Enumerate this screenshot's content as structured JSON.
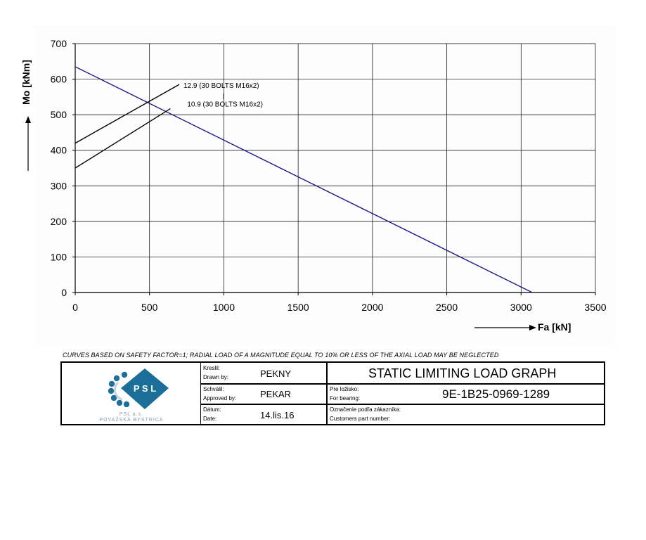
{
  "chart_data": {
    "type": "line",
    "xlabel": "Fa [kN]",
    "ylabel": "Mo [kNm]",
    "xlim": [
      0,
      3500
    ],
    "ylim": [
      0,
      700
    ],
    "x_ticks": [
      "0",
      "500",
      "1000",
      "1500",
      "2000",
      "2500",
      "3000",
      "3500"
    ],
    "y_ticks": [
      "0",
      "100",
      "200",
      "300",
      "400",
      "500",
      "600",
      "700"
    ],
    "grid": true,
    "series": [
      {
        "name": "",
        "color": "#1c1c8c",
        "x": [
          0,
          3075
        ],
        "y": [
          635,
          0
        ]
      },
      {
        "name": "12.9 (30 BOLTS M16x2)",
        "color": "#000000",
        "x": [
          0,
          700
        ],
        "y": [
          420,
          585
        ]
      },
      {
        "name": "10.9 (30 BOLTS M16x2)",
        "color": "#000000",
        "x": [
          0,
          640
        ],
        "y": [
          350,
          517
        ]
      }
    ]
  },
  "note": "CURVES BASED ON SAFETY FACTOR=1; RADIAL LOAD OF A MAGNITUDE EQUAL TO 10% OR LESS OF THE AXIAL LOAD MAY BE NEGLECTED",
  "title_block": {
    "logo_text": "P S L",
    "logo_caption_1": "PSL a.s.",
    "logo_caption_2": "POVAŽSKÁ BYSTRICA",
    "drawn_label_sk": "Kreslil:",
    "drawn_label_en": "Drawn by:",
    "drawn_value": "PEKNY",
    "approved_label_sk": "Schválil:",
    "approved_label_en": "Approved by:",
    "approved_value": "PEKAR",
    "date_label_sk": "Dátum:",
    "date_label_en": "Date:",
    "date_value": "14.lis.16",
    "title": "STATIC LIMITING LOAD GRAPH",
    "bearing_label_sk": "Pre ložisko:",
    "bearing_label_en": "For bearing:",
    "bearing_value": "9E-1B25-0969-1289",
    "customer_label_sk": "Označenie podľa zákazníka:",
    "customer_label_en": "Customers part number:"
  }
}
